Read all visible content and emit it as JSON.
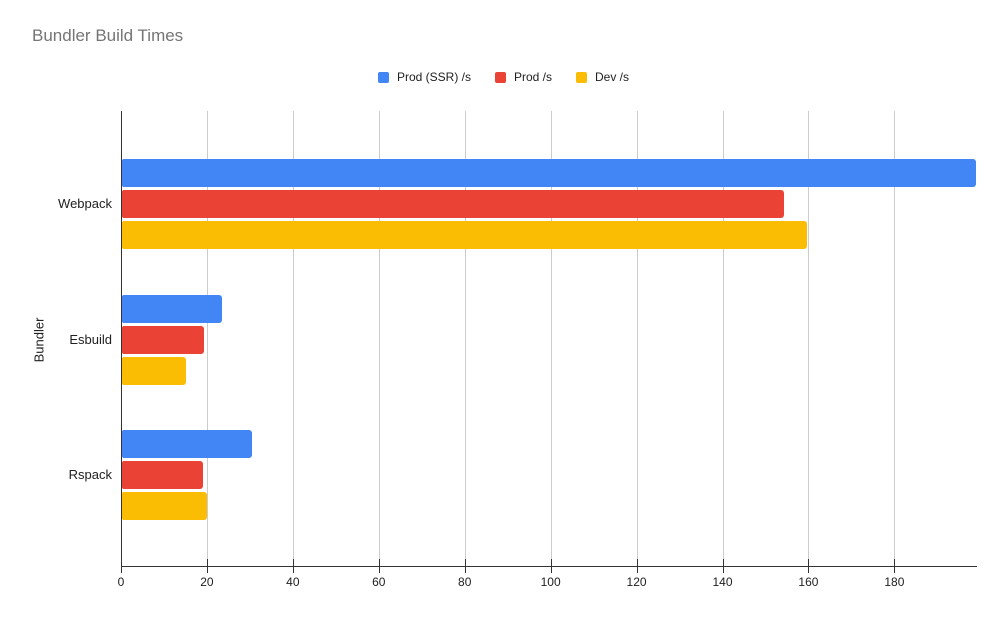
{
  "colors": {
    "axis": "#333333",
    "gridline": "#cccccc",
    "title_text": "#757575",
    "label_text": "#212121",
    "background": "#ffffff"
  },
  "chart_data": {
    "type": "bar",
    "orientation": "horizontal",
    "title": "Bundler Build Times",
    "xlabel": "",
    "ylabel": "Bundler",
    "categories": [
      "Webpack",
      "Esbuild",
      "Rspack"
    ],
    "series": [
      {
        "name": "Prod (SSR) /s",
        "color": "#4285F4",
        "values": [
          199,
          23.6,
          30.6
        ]
      },
      {
        "name": "Prod /s",
        "color": "#EA4335",
        "values": [
          154.4,
          19.4,
          19.2
        ]
      },
      {
        "name": "Dev /s",
        "color": "#FBBC04",
        "values": [
          159.6,
          15.2,
          20
        ]
      }
    ],
    "xlim": [
      0,
      199
    ],
    "xticks": [
      0,
      20,
      40,
      60,
      80,
      100,
      120,
      140,
      160,
      180
    ],
    "grid": true,
    "legend_position": "top"
  }
}
